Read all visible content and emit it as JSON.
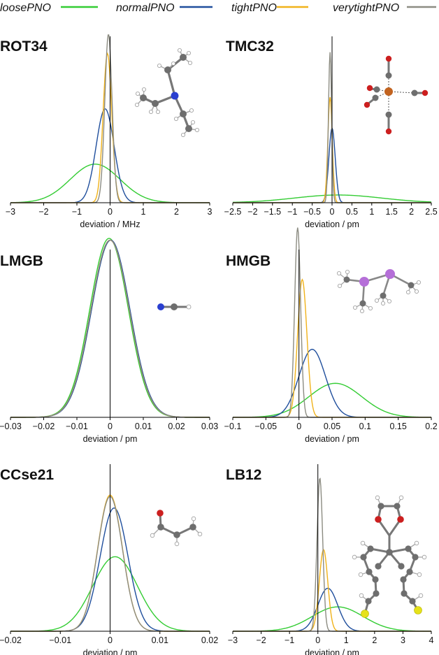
{
  "legend": [
    {
      "label": "loosePNO",
      "color": "#33cc33"
    },
    {
      "label": "normalPNO",
      "color": "#1f4e9c"
    },
    {
      "label": "tightPNO",
      "color": "#f0b21a"
    },
    {
      "label": "verytightPNO",
      "color": "#8c8c82"
    }
  ],
  "molecule_icons": [
    "triethylamine-molecule",
    "iron-pentacarbonyl-molecule",
    "hcn-molecule",
    "tetramethyldiarsine-molecule",
    "acrolein-molecule",
    "spiro-dithiophene-molecule"
  ],
  "chart_data": [
    {
      "type": "area",
      "title": "ROT34",
      "xlabel": "deviation / MHz",
      "xlim": [
        -3,
        3
      ],
      "xticks": [
        -3,
        -2,
        -1,
        0,
        1,
        2,
        3
      ],
      "xtick_labels": [
        "−3",
        "−2",
        "−1",
        "0",
        "1",
        "2",
        "3"
      ],
      "zero_line": true,
      "series": [
        {
          "name": "loosePNO",
          "mean": -0.45,
          "sd": 0.75,
          "peak": 0.3
        },
        {
          "name": "normalPNO",
          "mean": -0.15,
          "sd": 0.27,
          "peak": 0.73
        },
        {
          "name": "tightPNO",
          "mean": -0.08,
          "sd": 0.13,
          "peak": 1.16
        },
        {
          "name": "verytightPNO",
          "mean": -0.05,
          "sd": 0.11,
          "peak": 1.31
        }
      ]
    },
    {
      "type": "area",
      "title": "TMC32",
      "xlabel": "deviation / pm",
      "xlim": [
        -2.5,
        2.5
      ],
      "xticks": [
        -2.5,
        -2,
        -1.5,
        -1,
        -0.5,
        0,
        0.5,
        1,
        1.5,
        2,
        2.5
      ],
      "xtick_labels": [
        "−2.5",
        "−2",
        "−1.5",
        "−1",
        "−0.5",
        "0",
        "0.5",
        "1",
        "1.5",
        "2",
        "2.5"
      ],
      "zero_line": true,
      "series": [
        {
          "name": "loosePNO",
          "mean": 0.15,
          "sd": 1.1,
          "peak": 0.06
        },
        {
          "name": "normalPNO",
          "mean": 0.0,
          "sd": 0.08,
          "peak": 0.58
        },
        {
          "name": "tightPNO",
          "mean": -0.05,
          "sd": 0.055,
          "peak": 0.82
        },
        {
          "name": "verytightPNO",
          "mean": -0.05,
          "sd": 0.04,
          "peak": 1.17
        }
      ]
    },
    {
      "type": "area",
      "title": "LMGB",
      "xlabel": "deviation / pm",
      "xlim": [
        -0.03,
        0.03
      ],
      "xticks": [
        -0.03,
        -0.02,
        -0.01,
        0,
        0.01,
        0.02,
        0.03
      ],
      "xtick_labels": [
        "−0.03",
        "−0.02",
        "−0.01",
        "0",
        "0.01",
        "0.02",
        "0.03"
      ],
      "zero_line": true,
      "series": [
        {
          "name": "loosePNO",
          "mean": -0.0003,
          "sd": 0.0058,
          "peak": 1.0
        },
        {
          "name": "normalPNO",
          "mean": 0.0002,
          "sd": 0.0058,
          "peak": 0.99
        },
        {
          "name": "tightPNO",
          "mean": 0.0,
          "sd": 0.0058,
          "peak": 0.99
        },
        {
          "name": "verytightPNO",
          "mean": 0.0,
          "sd": 0.0058,
          "peak": 0.99
        }
      ]
    },
    {
      "type": "area",
      "title": "HMGB",
      "xlabel": "deviation / pm",
      "xlim": [
        -0.1,
        0.2
      ],
      "xticks": [
        -0.1,
        -0.05,
        0,
        0.05,
        0.1,
        0.15,
        0.2
      ],
      "xtick_labels": [
        "−0.1",
        "−0.05",
        "0",
        "0.05",
        "0.1",
        "0.15",
        "0.2"
      ],
      "zero_line": true,
      "series": [
        {
          "name": "loosePNO",
          "mean": 0.055,
          "sd": 0.04,
          "peak": 0.19
        },
        {
          "name": "normalPNO",
          "mean": 0.02,
          "sd": 0.02,
          "peak": 0.38
        },
        {
          "name": "tightPNO",
          "mean": 0.005,
          "sd": 0.007,
          "peak": 0.77
        },
        {
          "name": "verytightPNO",
          "mean": -0.002,
          "sd": 0.0045,
          "peak": 1.06
        }
      ]
    },
    {
      "type": "area",
      "title": "CCse21",
      "xlabel": "deviation / pm",
      "xlim": [
        -0.02,
        0.02
      ],
      "xticks": [
        -0.02,
        -0.01,
        0,
        0.01,
        0.02
      ],
      "xtick_labels": [
        "−0.02",
        "−0.01",
        "0",
        "0.01",
        "0.02"
      ],
      "zero_line": true,
      "series": [
        {
          "name": "loosePNO",
          "mean": 0.001,
          "sd": 0.0045,
          "peak": 0.52
        },
        {
          "name": "normalPNO",
          "mean": 0.0008,
          "sd": 0.0028,
          "peak": 0.86
        },
        {
          "name": "tightPNO",
          "mean": 0.0,
          "sd": 0.0025,
          "peak": 0.95
        },
        {
          "name": "verytightPNO",
          "mean": 0.0,
          "sd": 0.0025,
          "peak": 0.94
        }
      ]
    },
    {
      "type": "area",
      "title": "LB12",
      "xlabel": "deviation / pm",
      "xlim": [
        -3,
        4
      ],
      "xticks": [
        -3,
        -2,
        -1,
        0,
        1,
        2,
        3,
        4
      ],
      "xtick_labels": [
        "−3",
        "−2",
        "−1",
        "0",
        "1",
        "2",
        "3",
        "4"
      ],
      "zero_line": true,
      "series": [
        {
          "name": "loosePNO",
          "mean": 0.7,
          "sd": 0.9,
          "peak": 0.17
        },
        {
          "name": "normalPNO",
          "mean": 0.35,
          "sd": 0.35,
          "peak": 0.3
        },
        {
          "name": "tightPNO",
          "mean": 0.2,
          "sd": 0.15,
          "peak": 0.57
        },
        {
          "name": "verytightPNO",
          "mean": 0.07,
          "sd": 0.1,
          "peak": 1.07
        }
      ]
    }
  ]
}
